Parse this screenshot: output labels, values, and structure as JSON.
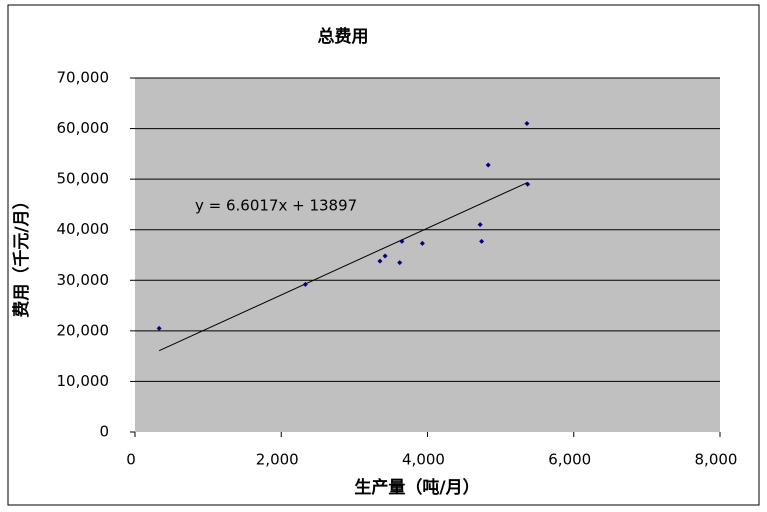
{
  "chart_data": {
    "type": "scatter",
    "title": "总费用",
    "x_label": "生产量（吨/月）",
    "y_label": "费用（千元/月）",
    "series": [
      {
        "name": "总费用",
        "color": "#000080",
        "x": [
          330,
          2330,
          3350,
          3420,
          3620,
          3650,
          3930,
          4720,
          4740,
          4830,
          5360,
          5370
        ],
        "values": [
          20500,
          29200,
          33800,
          34800,
          33500,
          37700,
          37300,
          41000,
          37700,
          52800,
          61000,
          49000
        ]
      }
    ],
    "trendline": {
      "label": "y = 6.6017x + 13897",
      "slope": 6.6017,
      "intercept": 13897,
      "color": "#000000"
    },
    "xlim": [
      0,
      8000
    ],
    "xticks": [
      0,
      {
        "value": 2000,
        "label": "2,000"
      },
      {
        "value": 4000,
        "label": "4,000"
      },
      {
        "value": 6000,
        "label": "6,000"
      },
      {
        "value": 8000,
        "label": "8,000"
      }
    ],
    "ylim": [
      0,
      70000
    ],
    "yticks": [
      0,
      {
        "value": 10000,
        "label": "10,000"
      },
      {
        "value": 20000,
        "label": "20,000"
      },
      {
        "value": 30000,
        "label": "30,000"
      },
      {
        "value": 40000,
        "label": "40,000"
      },
      {
        "value": 50000,
        "label": "50,000"
      },
      {
        "value": 60000,
        "label": "60,000"
      },
      {
        "value": 70000,
        "label": "70,000"
      }
    ],
    "grid": true,
    "plot_background": "#c0c0c0"
  }
}
